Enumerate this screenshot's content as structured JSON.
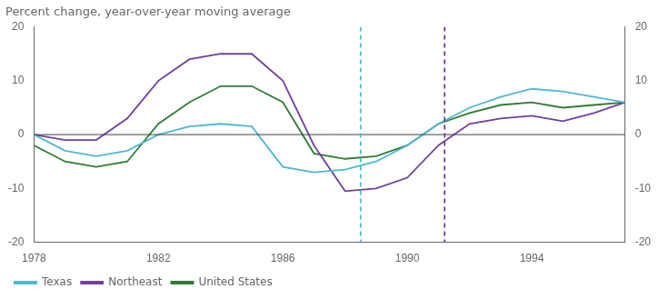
{
  "chart_data": {
    "type": "line",
    "title": "Percent change, year-over-year moving average",
    "x": [
      1978,
      1979,
      1980,
      1981,
      1982,
      1983,
      1984,
      1985,
      1986,
      1987,
      1988,
      1989,
      1990,
      1991,
      1992,
      1993,
      1994,
      1995,
      1996,
      1997
    ],
    "series": [
      {
        "name": "Texas",
        "color": "#4db8d4",
        "values": [
          0,
          -3,
          -4,
          -3,
          0,
          1.5,
          2,
          1.5,
          -6,
          -7,
          -6.5,
          -5,
          -2,
          2,
          5,
          7,
          8.5,
          8,
          7,
          6
        ]
      },
      {
        "name": "Northeast",
        "color": "#7040a0",
        "values": [
          0,
          -1,
          -1,
          3,
          10,
          14,
          15,
          15,
          10,
          -2,
          -10.5,
          -10,
          -8,
          -2,
          2,
          3,
          3.5,
          2.5,
          4,
          6
        ]
      },
      {
        "name": "United States",
        "color": "#2e7d32",
        "values": [
          -2,
          -5,
          -6,
          -5,
          2,
          6,
          9,
          9,
          6,
          -3.5,
          -4.5,
          -4,
          -2,
          2,
          4,
          5.5,
          6,
          5,
          5.5,
          6
        ]
      }
    ],
    "xlim": [
      1978,
      1997
    ],
    "xticks": [
      1978,
      1982,
      1986,
      1990,
      1994
    ],
    "ylim": [
      -20,
      20
    ],
    "yticks": [
      -20,
      -10,
      0,
      10,
      20
    ],
    "y2lim": [
      -20,
      20
    ],
    "y2ticks": [
      -20,
      -10,
      0,
      10,
      20
    ],
    "hlines": [
      {
        "value": 0,
        "color": "#404040"
      }
    ],
    "vlines": [
      {
        "value": 1988.5,
        "color": "#4db8d4"
      },
      {
        "value": 1991.2,
        "color": "#7040a0"
      }
    ],
    "grid": false,
    "legend": "lower left"
  }
}
